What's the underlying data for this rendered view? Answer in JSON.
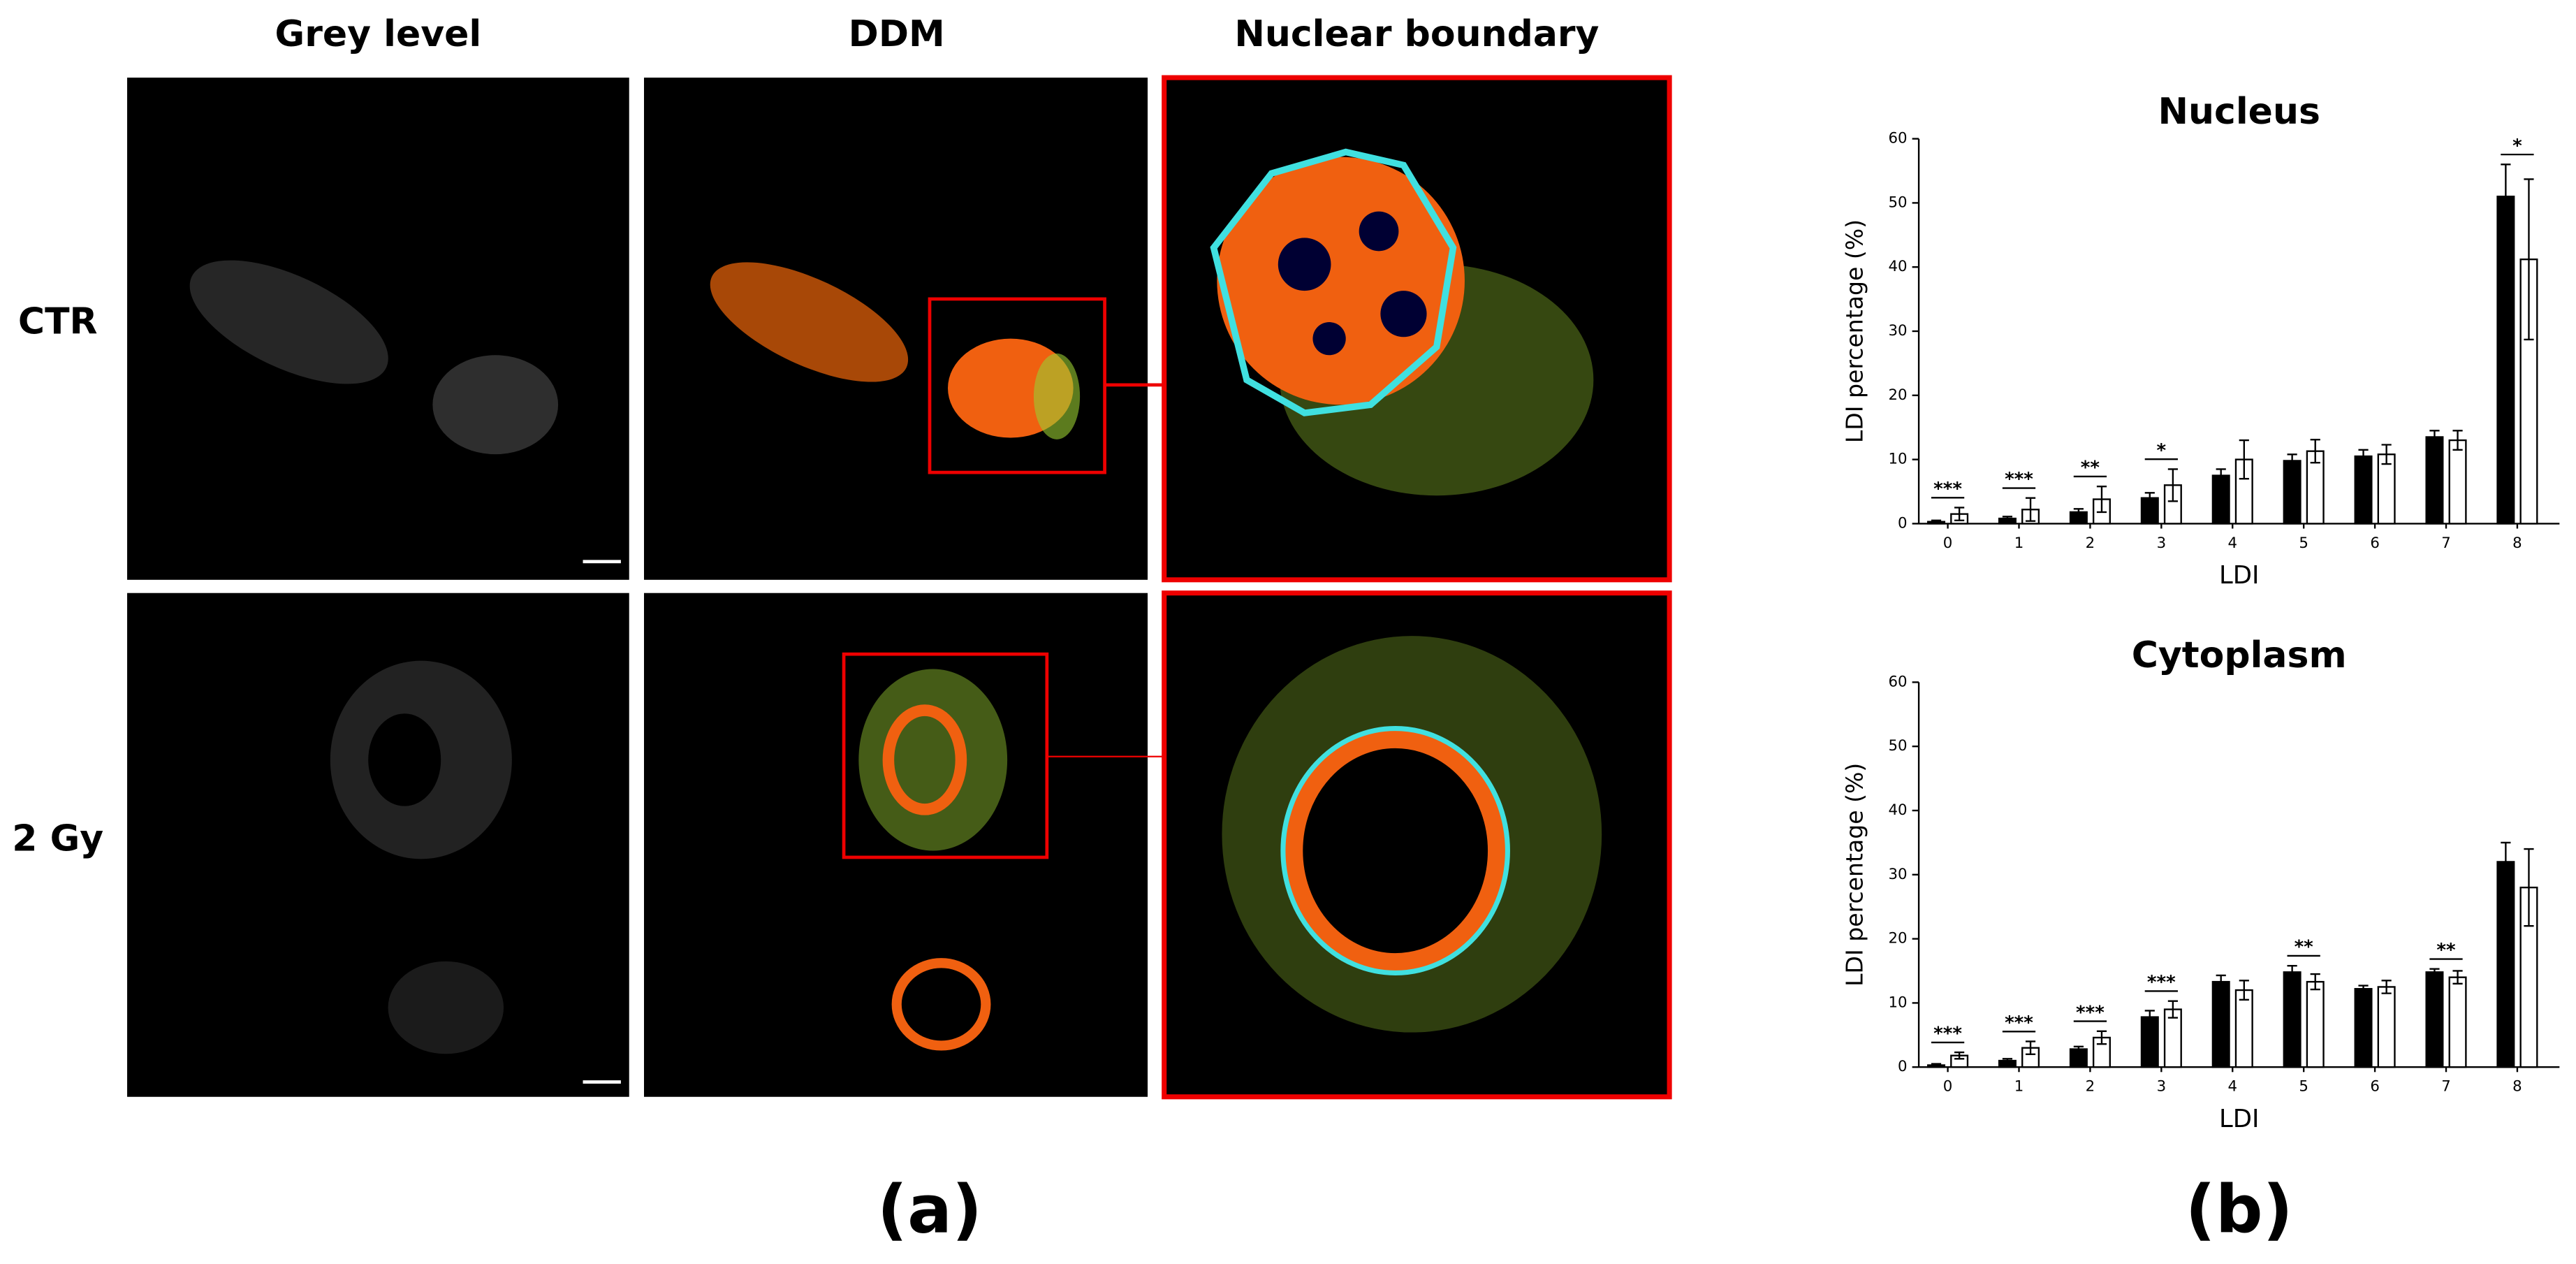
{
  "panel_a": {
    "columns": [
      "Grey level",
      "DDM",
      "Nuclear boundary"
    ],
    "rows": [
      "CTR",
      "2 Gy"
    ],
    "label": "(a)"
  },
  "panel_b_label": "(b)",
  "chart_data": [
    {
      "type": "bar",
      "title": "Nucleus",
      "x_label": "LDI",
      "y_label": "LDI percentage (%)",
      "categories": [
        "0",
        "1",
        "2",
        "3",
        "4",
        "5",
        "6",
        "7",
        "8"
      ],
      "series": [
        {
          "color": "#000000",
          "values": [
            0.3,
            0.8,
            1.8,
            4.0,
            7.5,
            9.8,
            10.5,
            13.5,
            51
          ],
          "errors": [
            0.2,
            0.3,
            0.5,
            0.8,
            1,
            1,
            1,
            1,
            5
          ]
        },
        {
          "color": "#ffffff",
          "values": [
            1.5,
            2.2,
            3.8,
            6.0,
            10,
            11.3,
            10.8,
            13,
            41.2
          ],
          "errors": [
            1,
            1.8,
            2,
            2.5,
            3,
            1.8,
            1.5,
            1.5,
            12.5
          ]
        }
      ],
      "significance": [
        "***",
        "***",
        "**",
        "*",
        null,
        null,
        null,
        null,
        "*"
      ],
      "ylim": [
        0,
        60
      ],
      "yticks": [
        0,
        10,
        20,
        30,
        40,
        50,
        60
      ],
      "grid": false
    },
    {
      "type": "bar",
      "title": "Cytoplasm",
      "x_label": "LDI",
      "y_label": "LDI percentage (%)",
      "categories": [
        "0",
        "1",
        "2",
        "3",
        "4",
        "5",
        "6",
        "7",
        "8"
      ],
      "series": [
        {
          "color": "#000000",
          "values": [
            0.3,
            1,
            2.8,
            7.8,
            13.3,
            14.8,
            12.2,
            14.8,
            32
          ],
          "errors": [
            0.2,
            0.3,
            0.4,
            1,
            1,
            1,
            0.5,
            0.5,
            3
          ]
        },
        {
          "color": "#ffffff",
          "values": [
            1.8,
            3,
            4.6,
            9,
            12,
            13.3,
            12.5,
            14,
            28
          ],
          "errors": [
            0.5,
            1,
            1,
            1.3,
            1.5,
            1.2,
            1,
            1,
            6
          ]
        }
      ],
      "significance": [
        "***",
        "***",
        "***",
        "***",
        null,
        "**",
        null,
        "**",
        null
      ],
      "ylim": [
        0,
        60
      ],
      "yticks": [
        0,
        10,
        20,
        30,
        40,
        50,
        60
      ],
      "grid": false
    }
  ]
}
